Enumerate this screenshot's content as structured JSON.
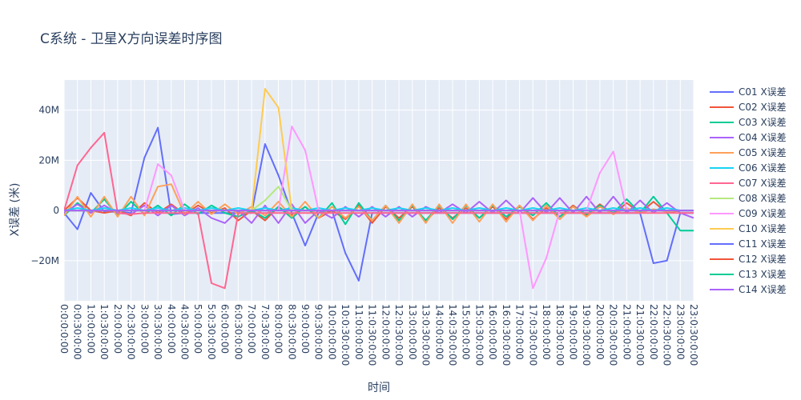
{
  "chart_data": {
    "type": "line",
    "title": "C系统 - 卫星X方向误差时序图",
    "xlabel": "时间",
    "ylabel": "X误差 (米)",
    "ylim": [
      -36000000,
      52000000
    ],
    "yticks": [
      -20000000,
      0,
      20000000,
      40000000
    ],
    "ytick_labels": [
      "−20M",
      "0",
      "20M",
      "40M"
    ],
    "grid": true,
    "legend_position": "right",
    "x": [
      "0:0:0:0:00",
      "0:0:30:0:00",
      "1:0:0:0:00",
      "1:0:30:0:00",
      "2:0:0:0:00",
      "2:0:30:0:00",
      "3:0:0:0:00",
      "3:0:30:0:00",
      "4:0:0:0:00",
      "4:0:30:0:00",
      "5:0:0:0:00",
      "5:0:30:0:00",
      "6:0:0:0:00",
      "6:0:30:0:00",
      "7:0:0:0:00",
      "7:0:30:0:00",
      "8:0:0:0:00",
      "8:0:30:0:00",
      "9:0:0:0:00",
      "9:0:30:0:00",
      "10:0:0:0:00",
      "10:0:30:0:00",
      "11:0:0:0:00",
      "11:0:30:0:00",
      "12:0:0:0:00",
      "12:0:30:0:00",
      "13:0:0:0:00",
      "13:0:30:0:00",
      "14:0:0:0:00",
      "14:0:30:0:00",
      "15:0:0:0:00",
      "15:0:30:0:00",
      "16:0:0:0:00",
      "16:0:30:0:00",
      "17:0:0:0:00",
      "17:0:30:0:00",
      "18:0:0:0:00",
      "18:0:30:0:00",
      "19:0:0:0:00",
      "19:0:30:0:00",
      "20:0:0:0:00",
      "20:0:30:0:00",
      "21:0:0:0:00",
      "21:0:30:0:00",
      "22:0:0:0:00",
      "22:0:30:0:00",
      "23:0:0:0:00",
      "23:0:30:0:00"
    ],
    "series": [
      {
        "name": "C01 X误差",
        "color": "#636efa",
        "values": [
          -1000000,
          -7500000,
          7000000,
          -500000,
          -500000,
          -1000000,
          21000000,
          33000000,
          -1500000,
          -1000000,
          -1000000,
          -1000000,
          -1000000,
          -1000000,
          -1000000,
          26500000,
          14000000,
          -1000000,
          -14000000,
          -1000000,
          0,
          -17000000,
          -28000000,
          -1000000,
          -1000000,
          -1000000,
          -1000000,
          -1000000,
          -1000000,
          -1000000,
          -1000000,
          -1000000,
          -1000000,
          -1000000,
          -1000000,
          -1000000,
          -1000000,
          -1000000,
          -1000000,
          -1000000,
          -1000000,
          -1000000,
          -1000000,
          -1000000,
          -21000000,
          -20000000,
          -1000000,
          -1000000
        ]
      },
      {
        "name": "C02 X误差",
        "color": "#ef553b",
        "values": [
          0,
          5000000,
          0,
          -1000000,
          0,
          -2000000,
          3000000,
          -1000000,
          2500000,
          -1500000,
          2000000,
          -1000000,
          1000000,
          -4000000,
          0,
          -4000000,
          1500000,
          -2000000,
          1500000,
          -3000000,
          0,
          -3500000,
          2000000,
          -5000000,
          1500000,
          -3000000,
          1500000,
          -4000000,
          1000000,
          -3000000,
          1000000,
          -3000000,
          1500000,
          -3500000,
          2000000,
          -3500000,
          1000000,
          -2500000,
          2000000,
          -2000000,
          2500000,
          -1500000,
          3000000,
          -1000000,
          3500000,
          -1000000,
          0,
          0
        ]
      },
      {
        "name": "C03 X误差",
        "color": "#00cc96",
        "values": [
          -2000000,
          3000000,
          -1000000,
          4500000,
          -2000000,
          3500000,
          -1500000,
          2000000,
          -2000000,
          2500000,
          -1500000,
          2000000,
          -1000000,
          -2500000,
          0,
          -3000000,
          1500000,
          -3000000,
          1500000,
          -3000000,
          3000000,
          -5500000,
          3000000,
          -4000000,
          2000000,
          -4000000,
          2000000,
          -4000000,
          2000000,
          -3500000,
          2000000,
          -3000000,
          2000000,
          -2500000,
          1500000,
          -2000000,
          3000000,
          -2500000,
          1500000,
          -1500000,
          2000000,
          -1000000,
          4500000,
          -1000000,
          5500000,
          -1000000,
          -8000000,
          -8000000
        ]
      },
      {
        "name": "C04 X误差",
        "color": "#ab63fa",
        "values": [
          -1000000,
          2500000,
          -1000000,
          2000000,
          -1000000,
          -1500000,
          2000000,
          -2000000,
          2000000,
          -2000000,
          1000000,
          -3000000,
          -5000000,
          0,
          -5000000,
          2000000,
          -5000000,
          2500000,
          -5000000,
          0,
          -3000000,
          1500000,
          -2500000,
          1500000,
          -2500000,
          1500000,
          -2500000,
          1500000,
          -1000000,
          2500000,
          -1000000,
          3500000,
          -1000000,
          4000000,
          -1000000,
          5000000,
          -1000000,
          5000000,
          -1000000,
          5500000,
          -1000000,
          5500000,
          -1000000,
          4000000,
          -1000000,
          3000000,
          -1000000,
          -3000000
        ]
      },
      {
        "name": "C05 X误差",
        "color": "#ffa15a",
        "values": [
          -2000000,
          5500000,
          -2500000,
          5500000,
          -2500000,
          5500000,
          -2000000,
          9500000,
          10500000,
          -1500000,
          3500000,
          -1500000,
          2500000,
          -1500000,
          1500000,
          -2000000,
          3500000,
          -2500000,
          3500000,
          -3000000,
          1500000,
          -3000000,
          1500000,
          -4000000,
          2000000,
          -5000000,
          2500000,
          -5000000,
          2500000,
          -5000000,
          2500000,
          -4500000,
          2500000,
          -4500000,
          2000000,
          -4000000,
          2000000,
          -3500000,
          1500000,
          -2500000,
          1500000,
          -1500000,
          1000000,
          -1000000,
          500000,
          -500000,
          0,
          0
        ]
      },
      {
        "name": "C06 X误差",
        "color": "#19d3f3",
        "values": [
          0,
          1000000,
          0,
          1000000,
          0,
          1000000,
          0,
          1000000,
          0,
          1000000,
          0,
          1000000,
          0,
          1000000,
          0,
          1000000,
          0,
          1000000,
          0,
          1000000,
          0,
          1000000,
          0,
          1000000,
          0,
          1000000,
          0,
          1000000,
          0,
          1000000,
          0,
          1000000,
          0,
          1000000,
          0,
          1000000,
          0,
          1000000,
          0,
          1000000,
          0,
          1000000,
          0,
          1000000,
          0,
          1000000,
          0,
          0
        ]
      },
      {
        "name": "C07 X误差",
        "color": "#ff6692",
        "values": [
          0,
          18000000,
          25000000,
          31000000,
          -1000000,
          -1500000,
          -1000000,
          -1000000,
          -1000000,
          -1000000,
          -1000000,
          -29000000,
          -31000000,
          -1000000,
          -1000000,
          -1000000,
          -1000000,
          -1000000,
          -1000000,
          -1000000,
          -1000000,
          -1000000,
          -1000000,
          -1000000,
          -1000000,
          -1000000,
          -1000000,
          -1000000,
          -1000000,
          -1000000,
          -1000000,
          -1000000,
          -1000000,
          -1000000,
          -1000000,
          -1000000,
          -1000000,
          -1000000,
          -1000000,
          -1000000,
          -1000000,
          -1000000,
          -1000000,
          -1000000,
          -1000000,
          -1000000,
          -1000000,
          -1000000
        ]
      },
      {
        "name": "C08 X误差",
        "color": "#b6e880",
        "values": [
          0,
          0,
          0,
          0,
          0,
          0,
          0,
          0,
          0,
          0,
          0,
          0,
          0,
          0,
          0,
          4000000,
          9500000,
          0,
          0,
          0,
          0,
          0,
          0,
          0,
          0,
          0,
          0,
          0,
          0,
          0,
          0,
          0,
          0,
          0,
          0,
          0,
          0,
          0,
          0,
          0,
          0,
          0,
          0,
          0,
          0,
          0,
          0,
          0
        ]
      },
      {
        "name": "C09 X误差",
        "color": "#ff97ff",
        "values": [
          0,
          0,
          0,
          0,
          0,
          0,
          0,
          18500000,
          14000000,
          0,
          0,
          0,
          0,
          0,
          0,
          0,
          0,
          33500000,
          24000000,
          0,
          0,
          0,
          0,
          0,
          0,
          0,
          0,
          0,
          0,
          0,
          0,
          0,
          0,
          0,
          0,
          -31000000,
          -19000000,
          0,
          0,
          0,
          15000000,
          23500000,
          0,
          0,
          0,
          0,
          0,
          0
        ]
      },
      {
        "name": "C10 X误差",
        "color": "#fecb52",
        "values": [
          0,
          0,
          0,
          0,
          0,
          0,
          0,
          0,
          0,
          0,
          0,
          0,
          0,
          0,
          0,
          48500000,
          41000000,
          0,
          0,
          0,
          0,
          0,
          0,
          0,
          0,
          0,
          0,
          0,
          0,
          0,
          0,
          0,
          0,
          0,
          0,
          0,
          0,
          0,
          0,
          0,
          0,
          0,
          0,
          0,
          0,
          0,
          0,
          0
        ]
      },
      {
        "name": "C11 X误差",
        "color": "#636efa",
        "values": [
          0,
          0,
          0,
          0,
          0,
          0,
          0,
          0,
          0,
          0,
          0,
          0,
          0,
          0,
          0,
          0,
          0,
          0,
          0,
          0,
          0,
          0,
          0,
          0,
          0,
          0,
          0,
          0,
          0,
          0,
          0,
          0,
          0,
          0,
          0,
          0,
          0,
          0,
          0,
          0,
          0,
          0,
          0,
          0,
          0,
          0,
          0,
          0
        ]
      },
      {
        "name": "C12 X误差",
        "color": "#ef553b",
        "values": [
          0,
          0,
          0,
          0,
          0,
          0,
          0,
          0,
          0,
          0,
          0,
          0,
          0,
          0,
          0,
          0,
          0,
          0,
          0,
          0,
          0,
          0,
          0,
          0,
          0,
          0,
          0,
          0,
          0,
          0,
          0,
          0,
          0,
          0,
          0,
          0,
          0,
          0,
          0,
          0,
          0,
          0,
          0,
          0,
          0,
          0,
          0,
          0
        ]
      },
      {
        "name": "C13 X误差",
        "color": "#00cc96",
        "values": [
          0,
          0,
          0,
          0,
          0,
          0,
          0,
          0,
          0,
          0,
          0,
          0,
          0,
          0,
          0,
          0,
          0,
          0,
          0,
          0,
          0,
          0,
          0,
          0,
          0,
          0,
          0,
          0,
          0,
          0,
          0,
          0,
          0,
          0,
          0,
          0,
          0,
          0,
          0,
          0,
          0,
          0,
          0,
          0,
          0,
          0,
          0,
          0
        ]
      },
      {
        "name": "C14 X误差",
        "color": "#ab63fa",
        "values": [
          0,
          0,
          0,
          0,
          0,
          0,
          0,
          0,
          0,
          0,
          0,
          0,
          0,
          0,
          0,
          0,
          0,
          0,
          0,
          0,
          0,
          0,
          0,
          0,
          0,
          0,
          0,
          0,
          0,
          0,
          0,
          0,
          0,
          0,
          0,
          0,
          0,
          0,
          0,
          0,
          0,
          0,
          0,
          0,
          0,
          0,
          0,
          0
        ]
      }
    ]
  }
}
